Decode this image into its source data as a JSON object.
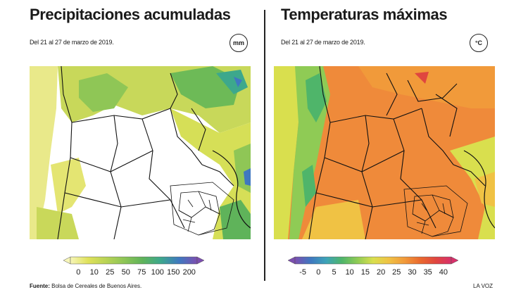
{
  "left": {
    "title": "Precipitaciones acumuladas",
    "subtitle": "Del 21 al 27 de marzo de 2019.",
    "unit": "mm",
    "legend_ticks": [
      "0",
      "10",
      "25",
      "50",
      "75",
      "100",
      "150",
      "200"
    ],
    "legend_colors": [
      "#f3f29a",
      "#dfe15a",
      "#b9d355",
      "#8fc656",
      "#5fb35a",
      "#3da88c",
      "#3f78c0",
      "#7c4fb0"
    ]
  },
  "right": {
    "title": "Temperaturas máximas",
    "subtitle": "Del 21 al 27 de marzo de 2019.",
    "unit": "°C",
    "legend_ticks": [
      "-5",
      "0",
      "5",
      "10",
      "15",
      "20",
      "25",
      "30",
      "35",
      "40"
    ],
    "legend_colors": [
      "#7c4fb0",
      "#3f78c0",
      "#3da3b8",
      "#4fb56a",
      "#8fcb55",
      "#d9df4e",
      "#f0c244",
      "#f19a3a",
      "#ea6a2e",
      "#e0463f",
      "#d8306b"
    ]
  },
  "footer": {
    "source_label": "Fuente:",
    "source_text": "Bolsa de Cereales de Buenos Aires.",
    "credit": "LA VOZ"
  },
  "colors": {
    "text": "#1a1a1a",
    "rain_base": "#dde45c",
    "temp_base": "#ef8a3a",
    "border": "#222222"
  }
}
